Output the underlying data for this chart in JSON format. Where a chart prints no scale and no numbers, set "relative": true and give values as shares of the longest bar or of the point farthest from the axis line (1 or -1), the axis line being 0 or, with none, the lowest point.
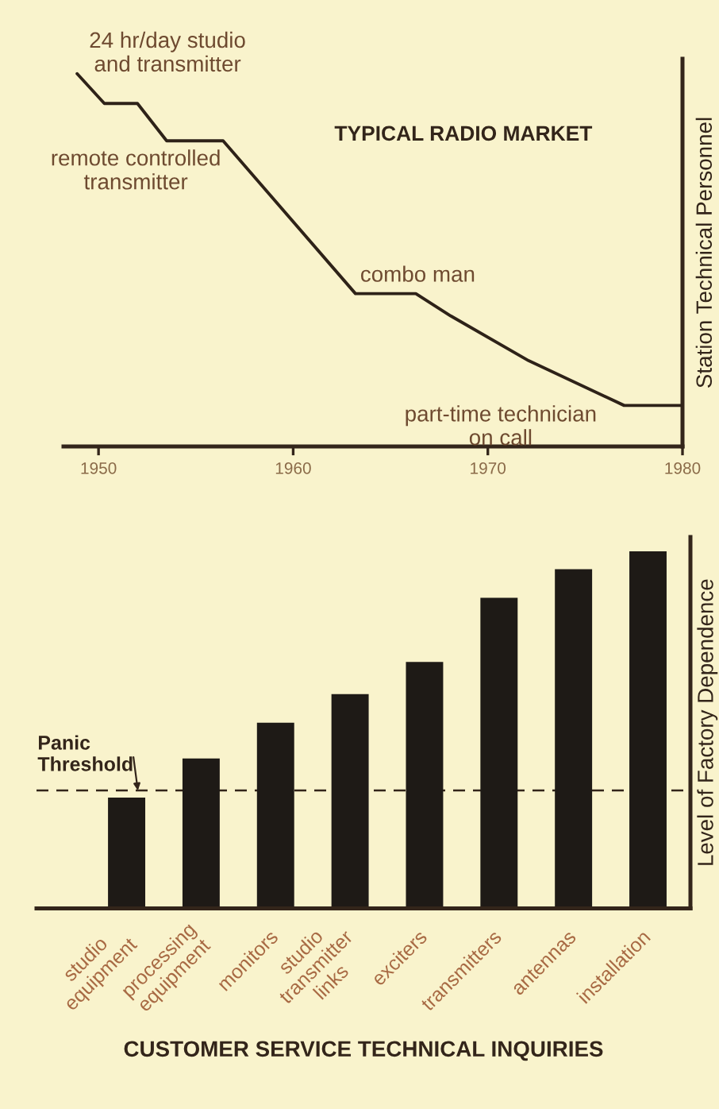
{
  "chart_data": [
    {
      "type": "line",
      "title": "TYPICAL RADIO MARKET",
      "ylabel": "Station Technical Personnel",
      "relative": true,
      "color": "#2e2218",
      "line_style": "solid",
      "x": [
        1948.9,
        1950.3,
        1952.0,
        1953.5,
        1956.4,
        1963.2,
        1966.3,
        1968.1,
        1972.1,
        1977.0,
        1980
      ],
      "values": [
        1,
        0.92,
        0.92,
        0.82,
        0.82,
        0.41,
        0.41,
        0.35,
        0.23,
        0.11,
        0.11
      ],
      "xlim": [
        1948.2,
        1980
      ],
      "xticks": [
        1950,
        1960,
        1970,
        1980
      ],
      "annotations": [
        {
          "text": "24 hr/day studio\nand transmitter",
          "x": 1948.9,
          "y": 1
        },
        {
          "text": "remote controlled\ntransmitter",
          "x": 1953.5,
          "y": 0.82
        },
        {
          "text": "combo man",
          "x": 1964.7,
          "y": 0.41
        },
        {
          "text": "part-time technician\non call",
          "x": 1977.0,
          "y": 0.11
        }
      ]
    },
    {
      "type": "bar",
      "xlabel": "CUSTOMER SERVICE TECHNICAL INQUIRIES",
      "ylabel": "Level of Factory Dependence",
      "relative": true,
      "color": "#1e1a16",
      "categories": [
        "studio\nequipment",
        "processing\nequipment",
        "monitors",
        "studio\ntransmitter\nlinks",
        "exciters",
        "transmitters",
        "antennas",
        "installation"
      ],
      "values": [
        0.31,
        0.42,
        0.52,
        0.6,
        0.69,
        0.87,
        0.95,
        1
      ],
      "ref_lines": [
        {
          "axis": "y",
          "value": 0.33,
          "label": "Panic\nThreshold",
          "line_style": "dashed"
        }
      ]
    }
  ]
}
